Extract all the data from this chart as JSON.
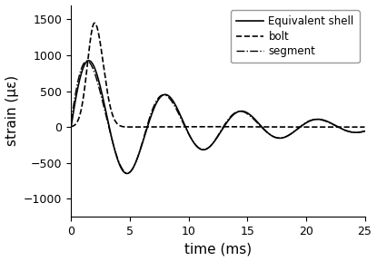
{
  "title": "",
  "xlabel": "time (ms)",
  "ylabel": "strain (με)",
  "xlim": [
    0,
    25
  ],
  "ylim": [
    -1250,
    1700
  ],
  "yticks": [
    -1000,
    -500,
    0,
    500,
    1000,
    1500
  ],
  "xticks": [
    0,
    5,
    10,
    15,
    20,
    25
  ],
  "legend_labels": [
    "Equivalent shell",
    "bolt",
    "segment"
  ],
  "line_color": "black",
  "figsize": [
    4.15,
    2.88
  ],
  "dpi": 100
}
